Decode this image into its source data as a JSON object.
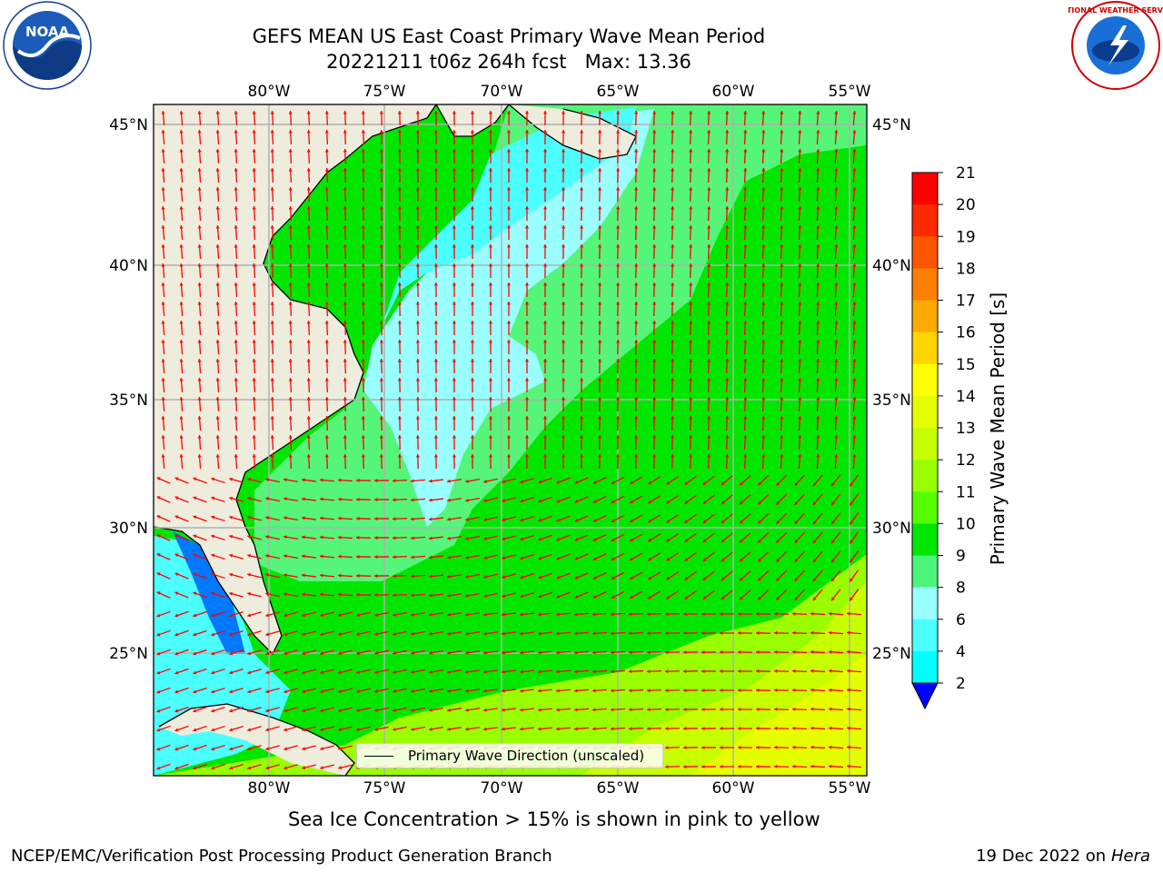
{
  "header": {
    "title_line1": "GEFS MEAN US East Coast Primary Wave Mean Period",
    "title_line2": "20221211 t06z 264h fcst   Max: 13.36"
  },
  "logos": {
    "left": "noaa-logo",
    "right": "nws-logo",
    "left_text": "NOAA",
    "right_text": "NATIONAL WEATHER SERVICE"
  },
  "map": {
    "lon_labels": [
      "80°W",
      "75°W",
      "70°W",
      "65°W",
      "60°W",
      "55°W"
    ],
    "lat_labels": [
      "45°N",
      "40°N",
      "35°N",
      "30°N",
      "25°N"
    ],
    "legend_label": "Primary Wave Direction (unscaled)",
    "arrow_color": "#ff0000",
    "land_color": "#eeecdc"
  },
  "colorbar": {
    "label": "Primary Wave Mean Period [s]",
    "ticks": [
      "21",
      "20",
      "19",
      "18",
      "17",
      "16",
      "15",
      "14",
      "13",
      "12",
      "11",
      "10",
      "9",
      "8",
      "6",
      "4",
      "2"
    ],
    "colors": [
      "#ff0000",
      "#ff2a00",
      "#ff5500",
      "#ff8000",
      "#ffaa00",
      "#ffd500",
      "#ffff00",
      "#e6ff00",
      "#c8ff00",
      "#99ff00",
      "#55ff00",
      "#00e600",
      "#4cf57a",
      "#99ffff",
      "#4cffff",
      "#00ffff",
      "#00b4ff",
      "#0064ff",
      "#0000ff"
    ]
  },
  "footer": {
    "subtitle": "Sea Ice Concentration > 15% is shown in pink to yellow",
    "left": "NCEP/EMC/Verification Post Processing Product Generation Branch",
    "right_date": "19 Dec 2022 on",
    "right_host": "Hera"
  }
}
